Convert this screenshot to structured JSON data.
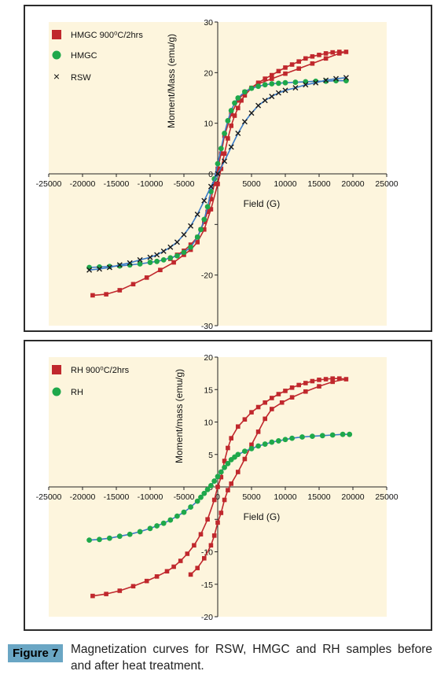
{
  "chart_data": [
    {
      "type": "scatter",
      "title": "",
      "xlabel": "Field (G)",
      "ylabel": "Moment/Mass (emu/g)",
      "xlim": [
        -25000,
        25000
      ],
      "ylim": [
        -30,
        30
      ],
      "xticks": [
        -25000,
        -20000,
        -15000,
        -10000,
        -5000,
        0,
        5000,
        10000,
        15000,
        20000,
        25000
      ],
      "yticks": [
        -30,
        -20,
        -10,
        0,
        10,
        20,
        30
      ],
      "ytick_labels": [
        "-30",
        "-20",
        "",
        "0",
        "10",
        "20",
        "30"
      ],
      "grid": false,
      "legend_position": "top-left",
      "background": "#fdf5dd",
      "series": [
        {
          "name": "HMGC 900⁰C/2hrs",
          "marker": "square",
          "color": "#c0282d",
          "line_color": "#c0282d",
          "x": [
            -18500,
            -16500,
            -14500,
            -12500,
            -10500,
            -8500,
            -6500,
            -5000,
            -4000,
            -3000,
            -2000,
            -1000,
            0,
            500,
            1000,
            1500,
            2000,
            2500,
            3000,
            3500,
            4000,
            5000,
            6000,
            7000,
            8000,
            9000,
            10000,
            11000,
            12000,
            13000,
            14000,
            15000,
            16000,
            17000,
            18000,
            19000,
            18000,
            16000,
            14000,
            12000,
            10000,
            8000,
            6000,
            4000,
            3000,
            2000,
            1000,
            500,
            0,
            -500,
            -1000,
            -1500,
            -2000,
            -2500,
            -3000,
            -4000,
            -5000,
            -6000,
            -7000
          ],
          "y": [
            -24,
            -23.8,
            -23,
            -21.8,
            -20.5,
            -19,
            -17.5,
            -16,
            -15,
            -13.5,
            -11,
            -7,
            -2,
            1,
            4,
            7,
            9.5,
            11.5,
            13,
            14.5,
            15.5,
            17,
            18,
            18.8,
            19.5,
            20.3,
            21,
            21.6,
            22.2,
            22.8,
            23.2,
            23.5,
            23.8,
            24,
            24.1,
            24.1,
            23.8,
            22.8,
            21.8,
            20.8,
            19.8,
            18.8,
            17.8,
            16.2,
            14.5,
            11.8,
            7.5,
            4,
            1,
            -2,
            -5,
            -7.5,
            -9.5,
            -11,
            -12.5,
            -14,
            -15.2,
            -16,
            -16.8
          ]
        },
        {
          "name": "HMGC",
          "marker": "circle",
          "color": "#1fa84a",
          "line_color": "#3a7bc8",
          "x": [
            -19000,
            -17500,
            -16000,
            -14500,
            -13000,
            -11500,
            -10000,
            -9000,
            -8000,
            -7000,
            -6000,
            -5000,
            -4000,
            -3000,
            -2500,
            -2000,
            -1500,
            -1000,
            -500,
            0,
            500,
            1000,
            1500,
            2000,
            2500,
            3000,
            4000,
            5000,
            6000,
            7000,
            8000,
            9000,
            10000,
            11500,
            13000,
            14500,
            16000,
            17500,
            19000
          ],
          "y": [
            -18.5,
            -18.4,
            -18.3,
            -18.2,
            -18,
            -17.8,
            -17.5,
            -17.3,
            -17,
            -16.6,
            -16.2,
            -15.5,
            -14.5,
            -12.5,
            -11,
            -9,
            -6.5,
            -3.5,
            -1,
            2,
            5,
            8,
            10.5,
            12.5,
            14,
            15,
            16.2,
            16.9,
            17.3,
            17.6,
            17.8,
            17.9,
            18,
            18.1,
            18.2,
            18.3,
            18.3,
            18.4,
            18.4
          ]
        },
        {
          "name": "RSW",
          "marker": "x",
          "color": "#1a1a1a",
          "line_color": "#3a7bc8",
          "x": [
            -19000,
            -17500,
            -16000,
            -14500,
            -13000,
            -11500,
            -10000,
            -9000,
            -8000,
            -7000,
            -6000,
            -5000,
            -4000,
            -3000,
            -2000,
            -1000,
            0,
            1000,
            2000,
            3000,
            4000,
            5000,
            6000,
            7000,
            8000,
            9000,
            10000,
            11500,
            13000,
            14500,
            16000,
            17500,
            19000
          ],
          "y": [
            -19,
            -18.8,
            -18.5,
            -18,
            -17.6,
            -17,
            -16.5,
            -16,
            -15.3,
            -14.5,
            -13.5,
            -12,
            -10.3,
            -8,
            -5.3,
            -2.5,
            0,
            2.5,
            5.3,
            8,
            10.3,
            12,
            13.5,
            14.5,
            15.3,
            16,
            16.5,
            17,
            17.6,
            18,
            18.5,
            18.8,
            19
          ]
        }
      ]
    },
    {
      "type": "scatter",
      "title": "",
      "xlabel": "Field (G)",
      "ylabel": "Moment/mass (emu/g)",
      "xlim": [
        -25000,
        25000
      ],
      "ylim": [
        -20,
        20
      ],
      "xticks": [
        -25000,
        -20000,
        -15000,
        -10000,
        -5000,
        0,
        5000,
        10000,
        15000,
        20000,
        25000
      ],
      "yticks": [
        -20,
        -15,
        -10,
        -5,
        0,
        5,
        10,
        15,
        20
      ],
      "ytick_labels": [
        "-20",
        "-15",
        "-10",
        "",
        "0",
        "5",
        "10",
        "15",
        "20"
      ],
      "grid": false,
      "legend_position": "top-left",
      "background": "#fdf5dd",
      "series": [
        {
          "name": "RH 900⁰C/2hrs",
          "marker": "square",
          "color": "#c0282d",
          "line_color": "#c0282d",
          "x": [
            -18500,
            -16500,
            -14500,
            -12500,
            -10500,
            -9000,
            -7500,
            -6500,
            -5500,
            -4500,
            -3500,
            -2500,
            -1500,
            -500,
            0,
            500,
            1000,
            1500,
            2000,
            3000,
            4000,
            5000,
            6000,
            7000,
            8000,
            9000,
            10000,
            11000,
            12000,
            13000,
            14000,
            15000,
            16000,
            17000,
            18000,
            19000,
            17000,
            15000,
            13000,
            11000,
            9500,
            8000,
            7000,
            6000,
            5000,
            4000,
            3000,
            2000,
            1500,
            1000,
            500,
            0,
            -500,
            -1000,
            -2000,
            -3000,
            -4000
          ],
          "y": [
            -16.8,
            -16.5,
            -16,
            -15.3,
            -14.5,
            -13.8,
            -13,
            -12.3,
            -11.4,
            -10.3,
            -9,
            -7.3,
            -5,
            -2,
            0,
            1.5,
            4,
            6,
            7.5,
            9.3,
            10.4,
            11.5,
            12.3,
            13,
            13.7,
            14.3,
            14.8,
            15.3,
            15.7,
            16,
            16.3,
            16.5,
            16.6,
            16.7,
            16.7,
            16.6,
            16.2,
            15.5,
            14.7,
            13.8,
            13,
            12,
            10.5,
            8.5,
            6.5,
            4.3,
            2.3,
            0.5,
            -0.5,
            -2,
            -4,
            -5.5,
            -7.5,
            -9,
            -11,
            -12.5,
            -13.5
          ]
        },
        {
          "name": "RH",
          "marker": "circle",
          "color": "#1fa84a",
          "line_color": "#3a7bc8",
          "x": [
            -19000,
            -17500,
            -16000,
            -14500,
            -13000,
            -11500,
            -10000,
            -9000,
            -8000,
            -7000,
            -6000,
            -5000,
            -4000,
            -3000,
            -2500,
            -2000,
            -1500,
            -1000,
            -500,
            0,
            500,
            1000,
            1500,
            2000,
            2500,
            3000,
            4000,
            5000,
            6000,
            7000,
            8000,
            9000,
            10000,
            11000,
            12500,
            14000,
            15500,
            17000,
            18500,
            19500
          ],
          "y": [
            -8.2,
            -8.1,
            -7.9,
            -7.6,
            -7.3,
            -6.9,
            -6.4,
            -6,
            -5.6,
            -5.1,
            -4.5,
            -3.9,
            -3.1,
            -2.2,
            -1.6,
            -1,
            -0.4,
            0.2,
            0.9,
            1.6,
            2.3,
            3,
            3.6,
            4.2,
            4.6,
            5,
            5.5,
            5.9,
            6.3,
            6.6,
            6.9,
            7.1,
            7.3,
            7.5,
            7.7,
            7.8,
            7.9,
            8,
            8.1,
            8.1
          ]
        }
      ]
    }
  ],
  "caption": {
    "tag": "Figure 7",
    "text": "Magnetization curves for RSW, HMGC and RH samples before and after heat treatment."
  }
}
